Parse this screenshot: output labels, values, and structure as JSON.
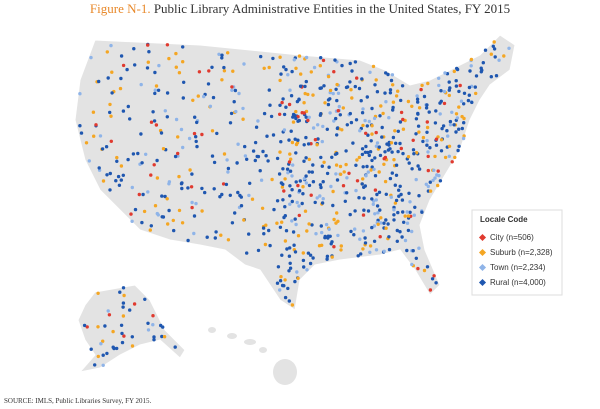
{
  "header": {
    "figure_label": "Figure N-1.",
    "title": "Public Library Administrative Entities in the United States, FY 2015"
  },
  "legend": {
    "title": "Locale Code",
    "items": [
      {
        "label": "City (n=506)",
        "color": "#e03a2f"
      },
      {
        "label": "Suburb (n=2,328)",
        "color": "#f4a623"
      },
      {
        "label": "Town (n=2,234)",
        "color": "#8fb4e8"
      },
      {
        "label": "Rural (n=4,000)",
        "color": "#1f57b0"
      }
    ]
  },
  "source": "SOURCE: IMLS, Public Libraries Survey, FY 2015."
}
